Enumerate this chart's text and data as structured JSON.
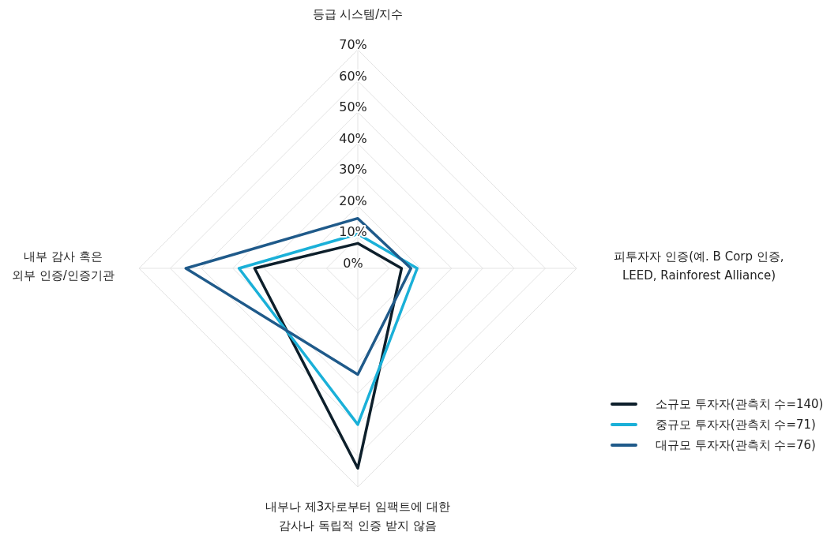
{
  "chart_data": {
    "type": "radar",
    "categories": [
      "등급 시스템/지수",
      "피투자자 인증(예. B Corp 인증,\nLEED, Rainforest Alliance)",
      "내부나 제3자로부터 임팩트에 대한\n감사나 독립적 인증 받지 않음",
      "내부 감사 혹은\n외부 인증/인증기관"
    ],
    "series": [
      {
        "name": "소규모 투자자(관측치 수=140)",
        "color": "#0d1f2b",
        "values": [
          8,
          14,
          64,
          33
        ]
      },
      {
        "name": "중규모 투자자(관측치 수=71)",
        "color": "#1ab0d8",
        "values": [
          11,
          19,
          50,
          38
        ]
      },
      {
        "name": "대규모 투자자(관측치 수=76)",
        "color": "#1f5a8a",
        "values": [
          16,
          17,
          34,
          55
        ]
      }
    ],
    "ylim": [
      0,
      70
    ],
    "yticks": [
      {
        "value": 0,
        "label": "0%"
      },
      {
        "value": 10,
        "label": "10%"
      },
      {
        "value": 20,
        "label": "20%"
      },
      {
        "value": 30,
        "label": "30%"
      },
      {
        "value": 40,
        "label": "40%"
      },
      {
        "value": 50,
        "label": "50%"
      },
      {
        "value": 60,
        "label": "60%"
      },
      {
        "value": 70,
        "label": "70%"
      }
    ],
    "grid": true,
    "legend": "bottom right",
    "marker": "none",
    "line_style": "solid"
  }
}
